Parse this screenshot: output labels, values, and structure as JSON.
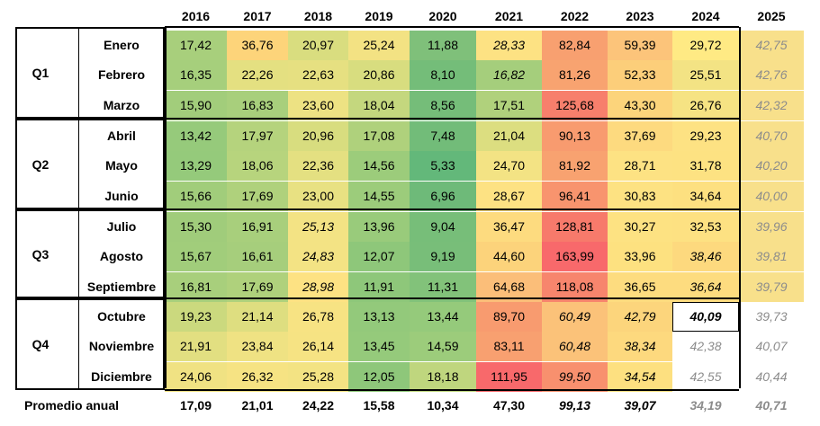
{
  "years": [
    "2016",
    "2017",
    "2018",
    "2019",
    "2020",
    "2021",
    "2022",
    "2023",
    "2024",
    "2025"
  ],
  "quarters": [
    {
      "label": "Q1",
      "months": [
        "Enero",
        "Febrero",
        "Marzo"
      ]
    },
    {
      "label": "Q2",
      "months": [
        "Abril",
        "Mayo",
        "Junio"
      ]
    },
    {
      "label": "Q3",
      "months": [
        "Julio",
        "Agosto",
        "Septiembre"
      ]
    },
    {
      "label": "Q4",
      "months": [
        "Octubre",
        "Noviembre",
        "Diciembre"
      ]
    }
  ],
  "rows": [
    {
      "values": [
        "17,42",
        "36,76",
        "20,97",
        "25,24",
        "11,88",
        "28,33",
        "82,84",
        "59,39",
        "29,72",
        "42,75"
      ],
      "colors": [
        "#a8cf7c",
        "#fdd47a",
        "#d9dd7f",
        "#f3e283",
        "#7fc07a",
        "#fde283",
        "#f8a070",
        "#fcc47a",
        "#ffea84",
        "#f8e08b"
      ],
      "styles": [
        "",
        "",
        "",
        "",
        "",
        "it",
        "",
        "",
        "",
        "grey"
      ]
    },
    {
      "values": [
        "16,35",
        "22,26",
        "22,63",
        "20,86",
        "8,10",
        "16,82",
        "81,26",
        "52,33",
        "25,51",
        "42,76"
      ],
      "colors": [
        "#a6cf7c",
        "#e4e081",
        "#e6e081",
        "#d8dd7f",
        "#74bd79",
        "#a5ce7c",
        "#f8a370",
        "#fcce7a",
        "#f3e384",
        "#f8e08b"
      ],
      "styles": [
        "",
        "",
        "",
        "",
        "",
        "it",
        "",
        "",
        "",
        "grey"
      ]
    },
    {
      "values": [
        "15,90",
        "16,83",
        "23,60",
        "18,04",
        "8,56",
        "17,51",
        "125,68",
        "43,30",
        "26,76",
        "42,32"
      ],
      "colors": [
        "#a2cd7b",
        "#a8cf7c",
        "#ede283",
        "#c4d77e",
        "#75bd79",
        "#b0d17c",
        "#f77f6c",
        "#fcd47b",
        "#f6e383",
        "#f8e08b"
      ],
      "styles": [
        "",
        "",
        "",
        "",
        "",
        "",
        "",
        "",
        "",
        "grey"
      ]
    },
    {
      "values": [
        "13,42",
        "17,97",
        "20,96",
        "17,08",
        "7,48",
        "21,04",
        "90,13",
        "37,69",
        "29,23",
        "40,70"
      ],
      "colors": [
        "#96ca7b",
        "#b5d37d",
        "#d8dd7f",
        "#afd17c",
        "#72bc79",
        "#dcde80",
        "#f89b6f",
        "#fdda7f",
        "#fde283",
        "#f8e08b"
      ],
      "styles": [
        "",
        "",
        "",
        "",
        "",
        "",
        "",
        "",
        "",
        "grey"
      ]
    },
    {
      "values": [
        "13,29",
        "18,06",
        "22,36",
        "14,56",
        "5,33",
        "24,70",
        "81,92",
        "28,71",
        "31,78",
        "40,20"
      ],
      "colors": [
        "#95ca7b",
        "#b7d47d",
        "#e4e081",
        "#9ccc7b",
        "#63b87a",
        "#f3e384",
        "#f8a270",
        "#fde283",
        "#fde282",
        "#f8e08b"
      ],
      "styles": [
        "",
        "",
        "",
        "",
        "",
        "",
        "",
        "",
        "",
        "grey"
      ]
    },
    {
      "values": [
        "15,66",
        "17,69",
        "23,00",
        "14,55",
        "6,96",
        "28,67",
        "96,41",
        "30,83",
        "34,64",
        "40,00"
      ],
      "colors": [
        "#a1cd7b",
        "#afd17c",
        "#e8e182",
        "#9ccc7b",
        "#6eba79",
        "#fde283",
        "#f8946e",
        "#fde282",
        "#fde080",
        "#f8e08b"
      ],
      "styles": [
        "",
        "",
        "",
        "",
        "",
        "",
        "",
        "",
        "",
        "grey"
      ]
    },
    {
      "values": [
        "15,30",
        "16,91",
        "25,13",
        "13,96",
        "9,04",
        "36,47",
        "128,81",
        "30,27",
        "32,53",
        "39,96"
      ],
      "colors": [
        "#a0cc7b",
        "#a8cf7c",
        "#f3e384",
        "#99cb7b",
        "#77be79",
        "#fddb7f",
        "#f77a6b",
        "#fde282",
        "#fde182",
        "#f8e08b"
      ],
      "styles": [
        "",
        "",
        "it",
        "",
        "",
        "",
        "",
        "",
        "",
        "grey"
      ]
    },
    {
      "values": [
        "15,67",
        "16,61",
        "24,83",
        "12,07",
        "9,19",
        "44,60",
        "163,99",
        "33,96",
        "38,46",
        "39,81"
      ],
      "colors": [
        "#a1cd7b",
        "#a6ce7c",
        "#f3e384",
        "#8ec77a",
        "#78be79",
        "#fcd37b",
        "#f8696b",
        "#fde180",
        "#fdd97e",
        "#f8e08b"
      ],
      "styles": [
        "",
        "",
        "it",
        "",
        "",
        "",
        "",
        "",
        "it",
        "grey"
      ]
    },
    {
      "values": [
        "16,81",
        "17,69",
        "28,98",
        "11,91",
        "11,31",
        "64,68",
        "118,08",
        "36,65",
        "36,64",
        "39,79"
      ],
      "colors": [
        "#a8cf7c",
        "#afd17c",
        "#fde283",
        "#8ec77a",
        "#82c27a",
        "#fbbe79",
        "#f7856d",
        "#fddc7f",
        "#fddc7f",
        "#f8e08b"
      ],
      "styles": [
        "",
        "",
        "it",
        "",
        "",
        "",
        "",
        "",
        "it",
        "grey"
      ]
    },
    {
      "values": [
        "19,23",
        "21,14",
        "26,78",
        "13,13",
        "13,44",
        "89,70",
        "60,49",
        "42,79",
        "40,09",
        "39,73"
      ],
      "colors": [
        "#cbd97e",
        "#dede80",
        "#f7e383",
        "#93c97b",
        "#95ca7b",
        "#f89b6f",
        "#fbc279",
        "#fcd57c",
        "#ffffff",
        "#ffffff"
      ],
      "styles": [
        "",
        "",
        "",
        "",
        "",
        "",
        "it",
        "it",
        "boxed",
        "grey"
      ]
    },
    {
      "values": [
        "21,91",
        "23,84",
        "26,14",
        "13,45",
        "14,59",
        "83,11",
        "60,48",
        "38,34",
        "42,38",
        "40,07"
      ],
      "colors": [
        "#e2df81",
        "#efe283",
        "#f6e383",
        "#95ca7b",
        "#9ccc7b",
        "#f8a070",
        "#fbc279",
        "#fdd97e",
        "#ffffff",
        "#ffffff"
      ],
      "styles": [
        "",
        "",
        "",
        "",
        "",
        "",
        "it",
        "it",
        "grey",
        "grey"
      ]
    },
    {
      "values": [
        "24,06",
        "26,32",
        "25,28",
        "12,05",
        "18,18",
        "111,95",
        "99,50",
        "34,54",
        "42,55",
        "40,44"
      ],
      "colors": [
        "#f0e283",
        "#f6e383",
        "#f3e383",
        "#8ec77a",
        "#bfd67e",
        "#f8696b",
        "#f8906e",
        "#fde080",
        "#ffffff",
        "#ffffff"
      ],
      "styles": [
        "",
        "",
        "",
        "",
        "",
        "",
        "it",
        "it",
        "grey",
        "grey"
      ]
    }
  ],
  "average": {
    "label": "Promedio anual",
    "values": [
      "17,09",
      "21,01",
      "24,22",
      "15,58",
      "10,34",
      "47,30",
      "99,13",
      "39,07",
      "34,19",
      "40,71"
    ],
    "styles": [
      "",
      "",
      "",
      "",
      "",
      "",
      "it",
      "it",
      "grey",
      "grey"
    ]
  }
}
